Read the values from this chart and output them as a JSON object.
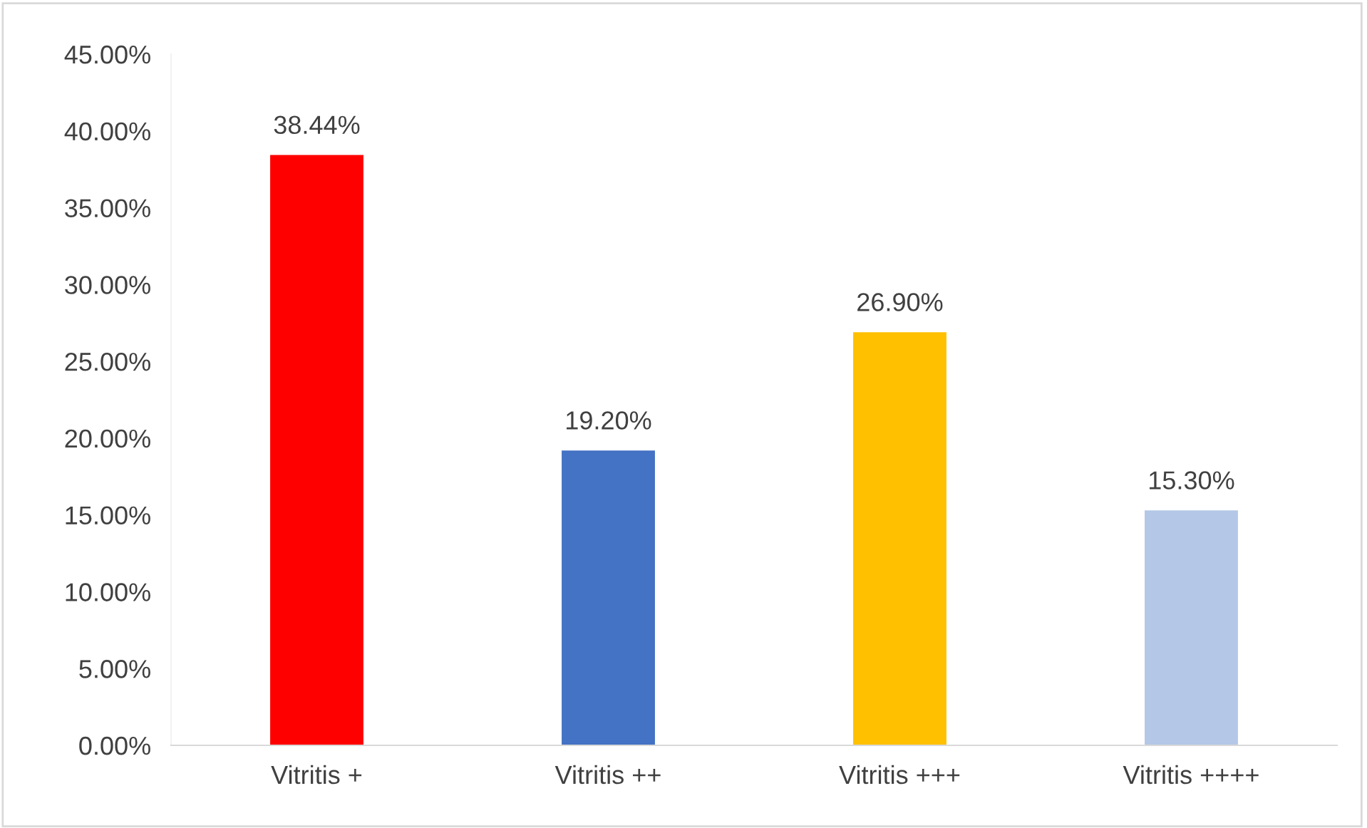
{
  "chart_data": {
    "type": "bar",
    "categories": [
      "Vitritis +",
      "Vitritis ++",
      "Vitritis +++",
      "Vitritis ++++"
    ],
    "values": [
      38.44,
      19.2,
      26.9,
      15.3
    ],
    "colors": [
      "#ff0000",
      "#4472c4",
      "#ffc000",
      "#b4c7e7"
    ],
    "value_labels": [
      "38.44%",
      "19.20%",
      "26.90%",
      "15.30%"
    ],
    "ylim": [
      0,
      45
    ],
    "yticks": [
      {
        "value": 0,
        "label": "0.00%"
      },
      {
        "value": 5,
        "label": "5.00%"
      },
      {
        "value": 10,
        "label": "10.00%"
      },
      {
        "value": 15,
        "label": "15.00%"
      },
      {
        "value": 20,
        "label": "20.00%"
      },
      {
        "value": 25,
        "label": "25.00%"
      },
      {
        "value": 30,
        "label": "30.00%"
      },
      {
        "value": 35,
        "label": "35.00%"
      },
      {
        "value": 40,
        "label": "40.00%"
      },
      {
        "value": 45,
        "label": "45.00%"
      }
    ],
    "grid": false,
    "legend": false
  }
}
